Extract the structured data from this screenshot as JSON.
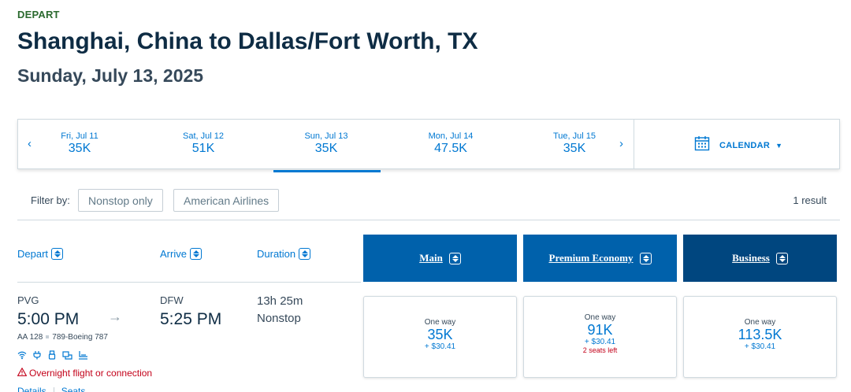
{
  "header": {
    "depart_label": "DEPART",
    "route_title": "Shanghai, China to Dallas/Fort Worth, TX",
    "date": "Sunday, July 13, 2025"
  },
  "date_bar": {
    "prev_icon": "chevron-left-icon",
    "next_icon": "chevron-right-icon",
    "dates": [
      {
        "label": "Fri, Jul 11",
        "price": "35K"
      },
      {
        "label": "Sat, Jul 12",
        "price": "51K"
      },
      {
        "label": "Sun, Jul 13",
        "price": "35K",
        "selected": true
      },
      {
        "label": "Mon, Jul 14",
        "price": "47.5K"
      },
      {
        "label": "Tue, Jul 15",
        "price": "35K"
      }
    ],
    "calendar_label": "CALENDAR",
    "calendar_icon": "calendar-icon"
  },
  "filters": {
    "label": "Filter by:",
    "chips": [
      "Nonstop only",
      "American Airlines"
    ],
    "result_count": "1 result"
  },
  "columns": {
    "depart": "Depart",
    "arrive": "Arrive",
    "duration": "Duration",
    "cabins": [
      {
        "name": "Main",
        "color": "#0061ab"
      },
      {
        "name": "Premium Economy",
        "color": "#0061ab"
      },
      {
        "name": "Business",
        "color": "#00467f"
      }
    ]
  },
  "flight": {
    "origin_code": "PVG",
    "depart_time": "5:00 PM",
    "dest_code": "DFW",
    "arrive_time": "5:25 PM",
    "duration": "13h 25m",
    "stops": "Nonstop",
    "flight_number": "AA 128",
    "aircraft": "789-Boeing 787",
    "amenities": [
      "wifi-icon",
      "power-outlet-icon",
      "usb-icon",
      "entertainment-icon",
      "lie-flat-seat-icon"
    ],
    "warning": "Overnight flight or connection",
    "links": [
      "Details",
      "Seats"
    ],
    "fares": [
      {
        "type": "One way",
        "price": "35K",
        "tax": "+ $30.41",
        "seats": ""
      },
      {
        "type": "One way",
        "price": "91K",
        "tax": "+ $30.41",
        "seats": "2 seats left"
      },
      {
        "type": "One way",
        "price": "113.5K",
        "tax": "+ $30.41",
        "seats": ""
      }
    ]
  },
  "colors": {
    "accent": "#0078d2",
    "main_cabin": "#0061ab",
    "business_cabin": "#00467f",
    "warning": "#c30019",
    "depart_label": "#2b6a2f"
  }
}
